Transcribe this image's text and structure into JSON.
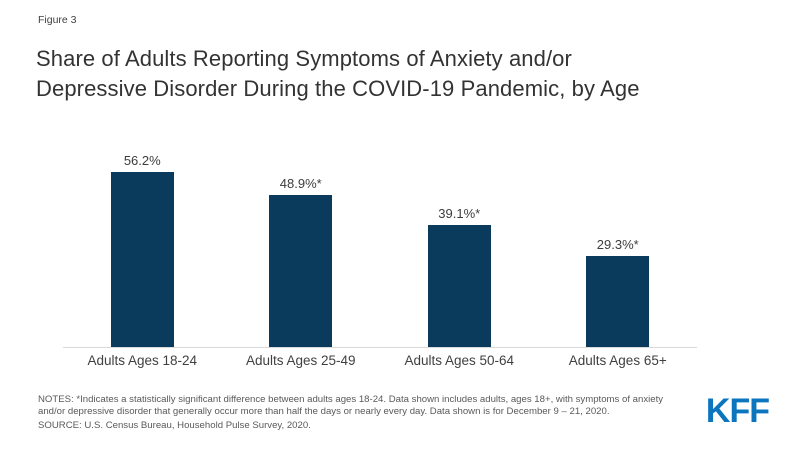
{
  "figure_label": "Figure 3",
  "title": {
    "line1": "Share of Adults Reporting Symptoms of Anxiety and/or",
    "line2": "Depressive Disorder During the COVID-19 Pandemic, by Age"
  },
  "chart_data": {
    "type": "bar",
    "title": "Share of Adults Reporting Symptoms of Anxiety and/or Depressive Disorder During the COVID-19 Pandemic, by Age",
    "categories": [
      "Adults Ages 18-24",
      "Adults Ages 25-49",
      "Adults Ages 50-64",
      "Adults Ages 65+"
    ],
    "values": [
      56.2,
      48.9,
      39.1,
      29.3
    ],
    "value_labels": [
      "56.2%",
      "48.9%*",
      "39.1%*",
      "29.3%*"
    ],
    "xlabel": "",
    "ylabel": "",
    "ylim": [
      0,
      60
    ],
    "grid": false,
    "legend": false,
    "bar_color": "#0B3B5C",
    "axis_color": "#d9d9d9"
  },
  "notes": {
    "line1": "NOTES: *Indicates a statistically significant difference between adults ages 18-24. Data shown includes adults, ages 18+, with symptoms of anxiety",
    "line2": "and/or depressive disorder that generally occur more than half the days or nearly every day. Data shown is for December 9 – 21, 2020.",
    "source": "SOURCE: U.S. Census Bureau, Household Pulse Survey, 2020."
  },
  "logo": {
    "text": "KFF",
    "color": "#0B75BE"
  }
}
